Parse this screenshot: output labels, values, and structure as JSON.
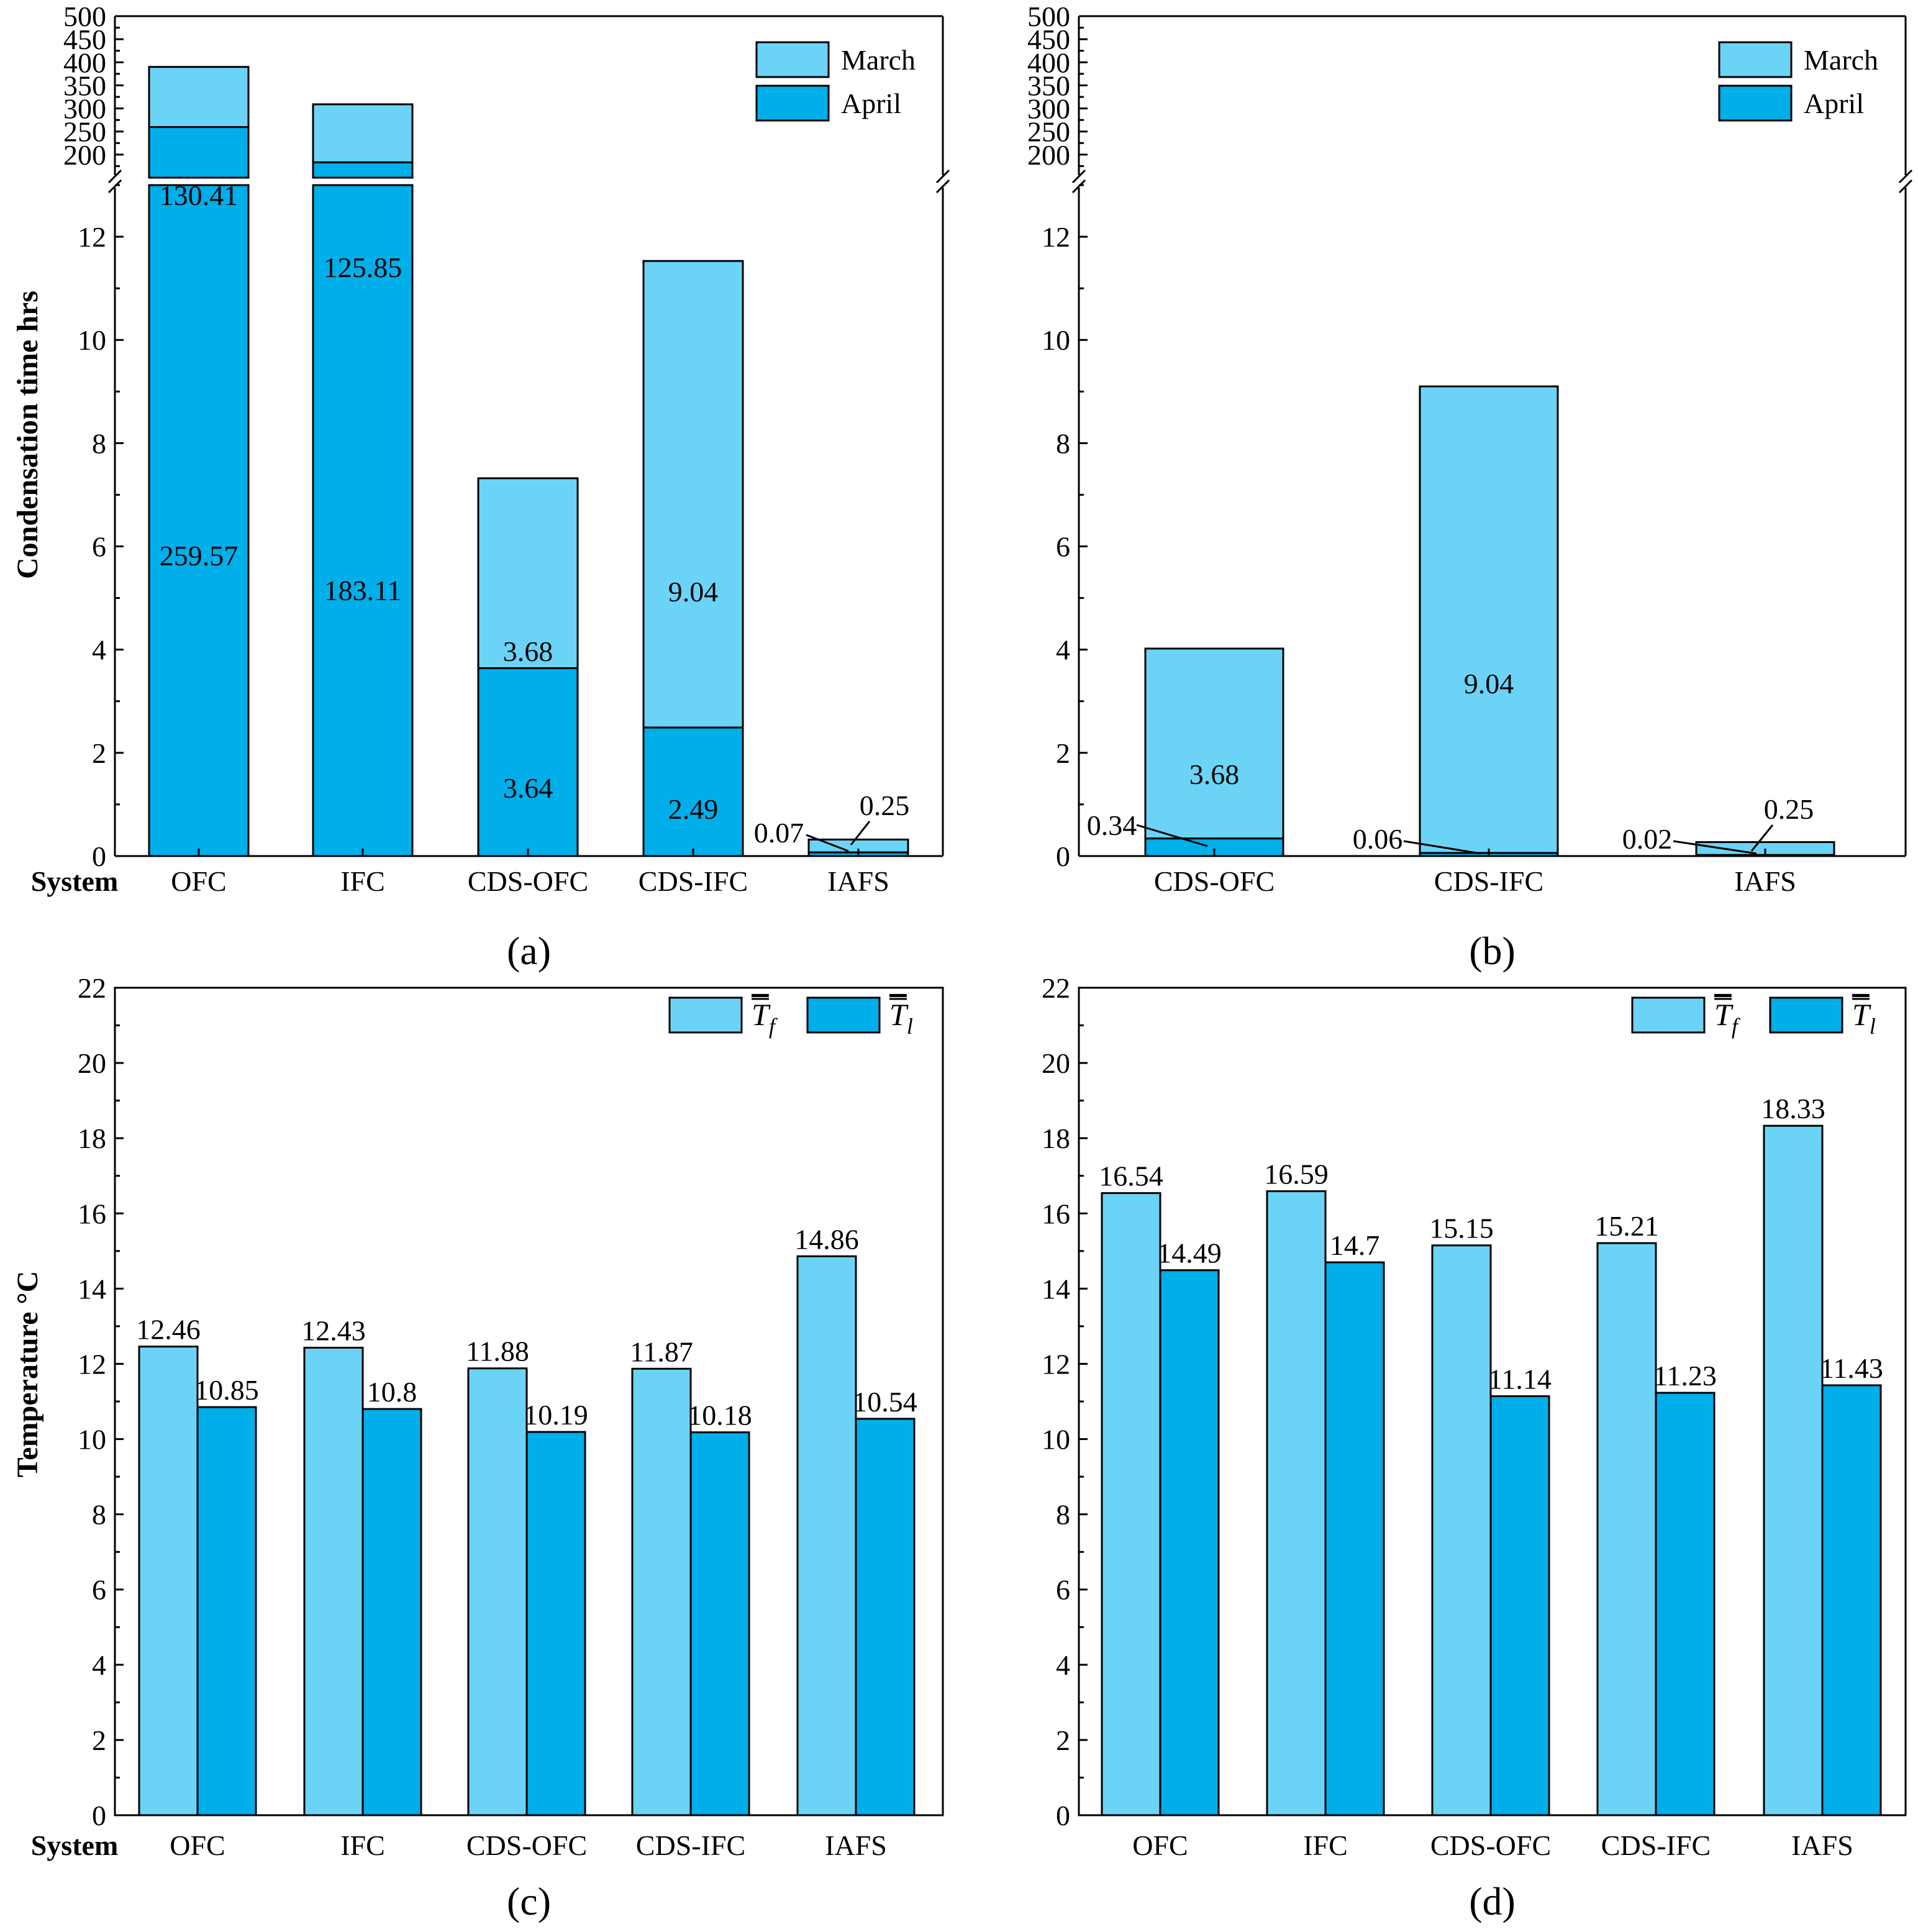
{
  "colors": {
    "light": "#6BD4F6",
    "dark": "#00AEEA",
    "axis": "#000000"
  },
  "common": {
    "system_label": "System"
  },
  "chart_data": [
    {
      "id": "a",
      "type": "bar",
      "stacked": true,
      "broken_axis": true,
      "panel_label": "(a)",
      "ylabel": "Condensation time hrs",
      "xlabel": "System",
      "categories": [
        "OFC",
        "IFC",
        "CDS-OFC",
        "CDS-IFC",
        "IAFS"
      ],
      "series": [
        {
          "name": "April",
          "values": [
            259.57,
            183.11,
            3.64,
            2.49,
            0.07
          ],
          "labels": [
            "259.57",
            "183.11",
            "3.64",
            "2.49",
            "0.07"
          ]
        },
        {
          "name": "March",
          "values": [
            130.41,
            125.85,
            3.68,
            9.04,
            0.25
          ],
          "labels": [
            "130.41",
            "125.85",
            "3.68",
            "9.04",
            "0.25"
          ]
        }
      ],
      "legend": [
        "March",
        "April"
      ],
      "legend_position": "top-right",
      "lower_ylim": [
        0,
        13
      ],
      "lower_yticks": [
        "0",
        "2",
        "4",
        "6",
        "8",
        "10",
        "12"
      ],
      "upper_ylim": [
        150,
        500
      ],
      "upper_yticks": [
        "200",
        "250",
        "300",
        "350",
        "400",
        "450",
        "500"
      ]
    },
    {
      "id": "b",
      "type": "bar",
      "stacked": true,
      "broken_axis": true,
      "panel_label": "(b)",
      "categories": [
        "CDS-OFC",
        "CDS-IFC",
        "IAFS"
      ],
      "series": [
        {
          "name": "April",
          "values": [
            0.34,
            0.06,
            0.02
          ],
          "labels": [
            "0.34",
            "0.06",
            "0.02"
          ]
        },
        {
          "name": "March",
          "values": [
            3.68,
            9.04,
            0.25
          ],
          "labels": [
            "3.68",
            "9.04",
            "0.25"
          ]
        }
      ],
      "legend": [
        "March",
        "April"
      ],
      "legend_position": "top-right",
      "lower_ylim": [
        0,
        13
      ],
      "lower_yticks": [
        "0",
        "2",
        "4",
        "6",
        "8",
        "10",
        "12"
      ],
      "upper_ylim": [
        150,
        500
      ],
      "upper_yticks": [
        "200",
        "250",
        "300",
        "350",
        "400",
        "450",
        "500"
      ]
    },
    {
      "id": "c",
      "type": "bar",
      "grouped": true,
      "panel_label": "(c)",
      "ylabel": "Temperature °C",
      "xlabel": "System",
      "categories": [
        "OFC",
        "IFC",
        "CDS-OFC",
        "CDS-IFC",
        "IAFS"
      ],
      "series": [
        {
          "name": "T̄f",
          "values": [
            12.46,
            12.43,
            11.88,
            11.87,
            14.86
          ],
          "labels": [
            "12.46",
            "12.43",
            "11.88",
            "11.87",
            "14.86"
          ]
        },
        {
          "name": "T̄l",
          "values": [
            10.85,
            10.8,
            10.19,
            10.18,
            10.54
          ],
          "labels": [
            "10.85",
            "10.8",
            "10.19",
            "10.18",
            "10.54"
          ]
        }
      ],
      "legend": [
        "T̄f",
        "T̄l"
      ],
      "legend_position": "top-right",
      "ylim": [
        0,
        22
      ],
      "yticks": [
        "0",
        "2",
        "4",
        "6",
        "8",
        "10",
        "12",
        "14",
        "16",
        "18",
        "20",
        "22"
      ]
    },
    {
      "id": "d",
      "type": "bar",
      "grouped": true,
      "panel_label": "(d)",
      "categories": [
        "OFC",
        "IFC",
        "CDS-OFC",
        "CDS-IFC",
        "IAFS"
      ],
      "series": [
        {
          "name": "T̄f",
          "values": [
            16.54,
            16.59,
            15.15,
            15.21,
            18.33
          ],
          "labels": [
            "16.54",
            "16.59",
            "15.15",
            "15.21",
            "18.33"
          ]
        },
        {
          "name": "T̄l",
          "values": [
            14.49,
            14.7,
            11.14,
            11.23,
            11.43
          ],
          "labels": [
            "14.49",
            "14.7",
            "11.14",
            "11.23",
            "11.43"
          ]
        }
      ],
      "legend": [
        "T̄f",
        "T̄l"
      ],
      "legend_position": "top-right",
      "ylim": [
        0,
        22
      ],
      "yticks": [
        "0",
        "2",
        "4",
        "6",
        "8",
        "10",
        "12",
        "14",
        "16",
        "18",
        "20",
        "22"
      ]
    }
  ]
}
